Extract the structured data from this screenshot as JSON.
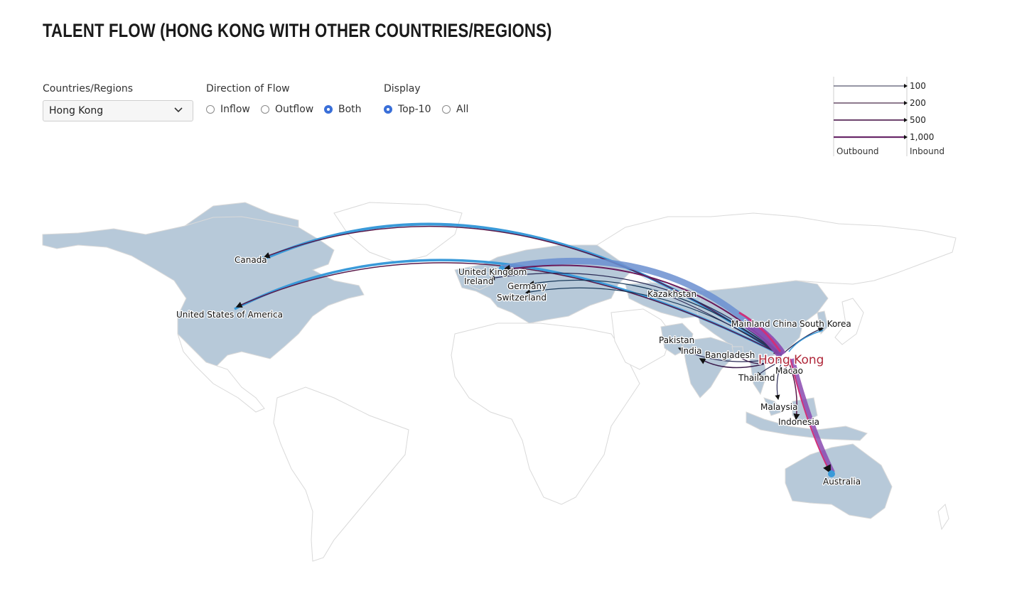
{
  "title": "TALENT FLOW (HONG KONG WITH OTHER COUNTRIES/REGIONS)",
  "controls": {
    "country_label": "Countries/Regions",
    "country_value": "Hong Kong",
    "direction_label": "Direction of Flow",
    "direction_options": [
      "Inflow",
      "Outflow",
      "Both"
    ],
    "direction_selected": "Both",
    "display_label": "Display",
    "display_options": [
      "Top-10",
      "All"
    ],
    "display_selected": "Top-10"
  },
  "legend": {
    "values": [
      "100",
      "200",
      "500",
      "1,000"
    ],
    "outbound_label": "Outbound",
    "inbound_label": "Inbound"
  },
  "colors": {
    "land": "#b7c9d9",
    "border": "#d6d6d6",
    "outbound": "#8a1a5c",
    "inbound": "#3a9ad9",
    "focus_label": "#b0283a"
  },
  "map": {
    "focus": "Hong Kong",
    "labels": [
      "Canada",
      "United States of America",
      "United Kingdom",
      "Ireland",
      "Germany",
      "Switzerland",
      "Kazakhstan",
      "Mainland China",
      "South Korea",
      "Pakistan",
      "India",
      "Bangladesh",
      "Thailand",
      "Macao",
      "Malaysia",
      "Indonesia",
      "Australia"
    ]
  }
}
